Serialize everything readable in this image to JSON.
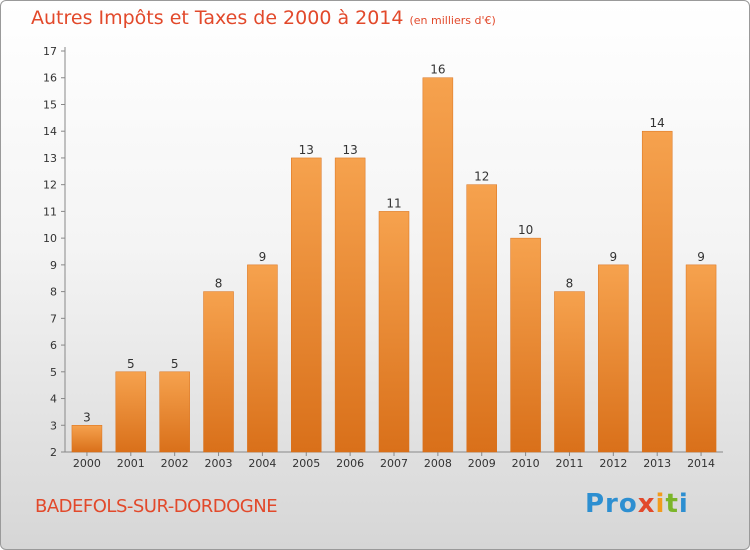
{
  "header": {
    "title": "Autres Impôts et Taxes de 2000 à 2014",
    "unit": "(en milliers d'€)"
  },
  "footer": {
    "commune": "BADEFOLS-SUR-DORDOGNE",
    "logo": [
      "Pro",
      "x",
      "i",
      "t",
      "i"
    ]
  },
  "colors": {
    "title": "#e2492b",
    "bar_light": "#f6a24e",
    "bar_dark": "#d9701a",
    "text": "#333333"
  },
  "chart_data": {
    "type": "bar",
    "title": "Autres Impôts et Taxes de 2000 à 2014",
    "xlabel": "",
    "ylabel": "",
    "categories": [
      "2000",
      "2001",
      "2002",
      "2003",
      "2004",
      "2005",
      "2006",
      "2007",
      "2008",
      "2009",
      "2010",
      "2011",
      "2012",
      "2013",
      "2014"
    ],
    "values": [
      3,
      5,
      5,
      8,
      9,
      13,
      13,
      11,
      16,
      12,
      10,
      8,
      9,
      14,
      9
    ],
    "ylim": [
      2,
      17
    ],
    "yticks": [
      2,
      3,
      4,
      5,
      6,
      7,
      8,
      9,
      10,
      11,
      12,
      13,
      14,
      15,
      16,
      17
    ],
    "grid": false,
    "legend": "none"
  }
}
